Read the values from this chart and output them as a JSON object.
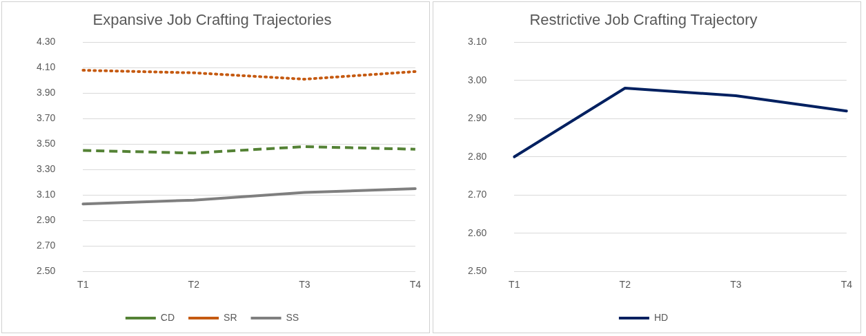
{
  "chart_data": [
    {
      "type": "line",
      "title": "Expansive Job Crafting Trajectories",
      "categories": [
        "T1",
        "T2",
        "T3",
        "T4"
      ],
      "series": [
        {
          "name": "CD",
          "color": "#548235",
          "line_style": "dashed",
          "values": [
            3.45,
            3.43,
            3.48,
            3.46
          ]
        },
        {
          "name": "SR",
          "color": "#c55a11",
          "line_style": "dotted",
          "values": [
            4.08,
            4.06,
            4.01,
            4.07
          ]
        },
        {
          "name": "SS",
          "color": "#7f7f7f",
          "line_style": "solid",
          "values": [
            3.03,
            3.06,
            3.12,
            3.15
          ]
        }
      ],
      "ylim": [
        2.5,
        4.3
      ],
      "yticks": [
        {
          "value": 2.5,
          "label": "2.50"
        },
        {
          "value": 2.7,
          "label": "2.70"
        },
        {
          "value": 2.9,
          "label": "2.90"
        },
        {
          "value": 3.1,
          "label": "3.10"
        },
        {
          "value": 3.3,
          "label": "3.30"
        },
        {
          "value": 3.5,
          "label": "3.50"
        },
        {
          "value": 3.7,
          "label": "3.70"
        },
        {
          "value": 3.9,
          "label": "3.90"
        },
        {
          "value": 4.1,
          "label": "4.10"
        },
        {
          "value": 4.3,
          "label": "4.30"
        }
      ],
      "grid": "y",
      "legend": "bottom"
    },
    {
      "type": "line",
      "title": "Restrictive Job Crafting Trajectory",
      "categories": [
        "T1",
        "T2",
        "T3",
        "T4"
      ],
      "series": [
        {
          "name": "HD",
          "color": "#002060",
          "line_style": "solid",
          "values": [
            2.8,
            2.98,
            2.96,
            2.92
          ]
        }
      ],
      "ylim": [
        2.5,
        3.1
      ],
      "yticks": [
        {
          "value": 2.5,
          "label": "2.50"
        },
        {
          "value": 2.6,
          "label": "2.60"
        },
        {
          "value": 2.7,
          "label": "2.70"
        },
        {
          "value": 2.8,
          "label": "2.80"
        },
        {
          "value": 2.9,
          "label": "2.90"
        },
        {
          "value": 3.0,
          "label": "3.00"
        },
        {
          "value": 3.1,
          "label": "3.10"
        }
      ],
      "grid": "y",
      "legend": "bottom"
    }
  ]
}
